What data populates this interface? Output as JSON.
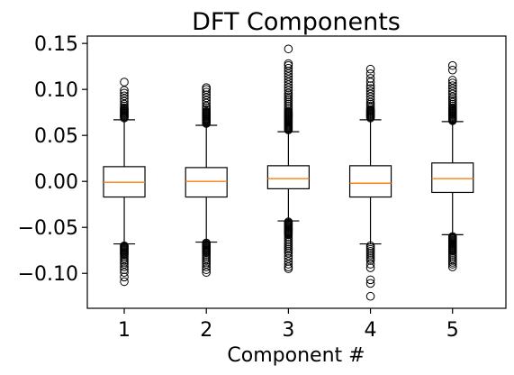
{
  "chart_data": {
    "type": "boxplot",
    "title": "DFT Components",
    "xlabel": "Component #",
    "ylabel": "",
    "categories": [
      "1",
      "2",
      "3",
      "4",
      "5"
    ],
    "ylim": [
      -0.138,
      0.158
    ],
    "yticks": [
      -0.1,
      -0.05,
      0.0,
      0.05,
      0.1,
      0.15
    ],
    "ytick_labels": [
      "−0.10",
      "−0.05",
      "0.00",
      "0.05",
      "0.10",
      "0.15"
    ],
    "grid": false,
    "colors": {
      "median": "#ff7f0e",
      "box": "#000000",
      "flier": "#000000"
    },
    "boxes": [
      {
        "label": "1",
        "q1": -0.017,
        "median": -0.001,
        "q3": 0.016,
        "whisker_low": -0.068,
        "whisker_high": 0.067,
        "outliers_low": [
          -0.07,
          -0.071,
          -0.072,
          -0.073,
          -0.074,
          -0.075,
          -0.076,
          -0.077,
          -0.078,
          -0.079,
          -0.08,
          -0.082,
          -0.084,
          -0.086,
          -0.088,
          -0.09,
          -0.093,
          -0.096,
          -0.099,
          -0.104,
          -0.109
        ],
        "outliers_high": [
          0.069,
          0.07,
          0.071,
          0.072,
          0.073,
          0.074,
          0.075,
          0.076,
          0.077,
          0.078,
          0.079,
          0.08,
          0.082,
          0.084,
          0.087,
          0.09,
          0.093,
          0.096,
          0.099,
          0.108
        ]
      },
      {
        "label": "2",
        "q1": -0.017,
        "median": 0.0,
        "q3": 0.015,
        "whisker_low": -0.066,
        "whisker_high": 0.061,
        "outliers_low": [
          -0.067,
          -0.068,
          -0.069,
          -0.07,
          -0.071,
          -0.072,
          -0.073,
          -0.074,
          -0.075,
          -0.076,
          -0.077,
          -0.078,
          -0.08,
          -0.082,
          -0.084,
          -0.086,
          -0.088,
          -0.09,
          -0.093,
          -0.096,
          -0.099
        ],
        "outliers_high": [
          0.063,
          0.064,
          0.065,
          0.066,
          0.067,
          0.068,
          0.069,
          0.07,
          0.071,
          0.072,
          0.073,
          0.074,
          0.075,
          0.076,
          0.078,
          0.08,
          0.082,
          0.085,
          0.088,
          0.091,
          0.094,
          0.097,
          0.1,
          0.102
        ]
      },
      {
        "label": "3",
        "q1": -0.008,
        "median": 0.003,
        "q3": 0.017,
        "whisker_low": -0.043,
        "whisker_high": 0.054,
        "outliers_low": [
          -0.044,
          -0.045,
          -0.046,
          -0.047,
          -0.048,
          -0.049,
          -0.05,
          -0.051,
          -0.052,
          -0.053,
          -0.054,
          -0.055,
          -0.056,
          -0.057,
          -0.058,
          -0.06,
          -0.062,
          -0.064,
          -0.066,
          -0.068,
          -0.07,
          -0.072,
          -0.074,
          -0.076,
          -0.078,
          -0.081,
          -0.084,
          -0.087,
          -0.09,
          -0.093,
          -0.095
        ],
        "outliers_high": [
          0.056,
          0.057,
          0.058,
          0.059,
          0.06,
          0.061,
          0.062,
          0.063,
          0.064,
          0.065,
          0.066,
          0.067,
          0.068,
          0.069,
          0.07,
          0.071,
          0.072,
          0.073,
          0.074,
          0.075,
          0.076,
          0.078,
          0.08,
          0.082,
          0.084,
          0.086,
          0.088,
          0.09,
          0.092,
          0.094,
          0.096,
          0.099,
          0.102,
          0.105,
          0.108,
          0.111,
          0.114,
          0.117,
          0.12,
          0.123,
          0.126,
          0.128,
          0.144
        ]
      },
      {
        "label": "4",
        "q1": -0.017,
        "median": -0.002,
        "q3": 0.017,
        "whisker_low": -0.068,
        "whisker_high": 0.067,
        "outliers_low": [
          -0.07,
          -0.072,
          -0.074,
          -0.076,
          -0.078,
          -0.08,
          -0.082,
          -0.084,
          -0.086,
          -0.09,
          -0.094,
          -0.107,
          -0.111,
          -0.125
        ],
        "outliers_high": [
          0.069,
          0.07,
          0.071,
          0.072,
          0.073,
          0.074,
          0.075,
          0.076,
          0.077,
          0.078,
          0.08,
          0.082,
          0.084,
          0.086,
          0.089,
          0.092,
          0.095,
          0.098,
          0.101,
          0.104,
          0.108,
          0.112,
          0.117,
          0.122
        ]
      },
      {
        "label": "5",
        "q1": -0.012,
        "median": 0.003,
        "q3": 0.02,
        "whisker_low": -0.058,
        "whisker_high": 0.065,
        "outliers_low": [
          -0.06,
          -0.061,
          -0.062,
          -0.063,
          -0.064,
          -0.065,
          -0.066,
          -0.067,
          -0.068,
          -0.069,
          -0.07,
          -0.071,
          -0.072,
          -0.073,
          -0.074,
          -0.075,
          -0.076,
          -0.078,
          -0.08,
          -0.082,
          -0.084,
          -0.086,
          -0.088,
          -0.09,
          -0.093
        ],
        "outliers_high": [
          0.066,
          0.067,
          0.068,
          0.069,
          0.07,
          0.071,
          0.072,
          0.073,
          0.074,
          0.075,
          0.076,
          0.077,
          0.078,
          0.079,
          0.08,
          0.082,
          0.084,
          0.086,
          0.088,
          0.09,
          0.092,
          0.095,
          0.098,
          0.101,
          0.104,
          0.107,
          0.11,
          0.121,
          0.126
        ]
      }
    ]
  }
}
